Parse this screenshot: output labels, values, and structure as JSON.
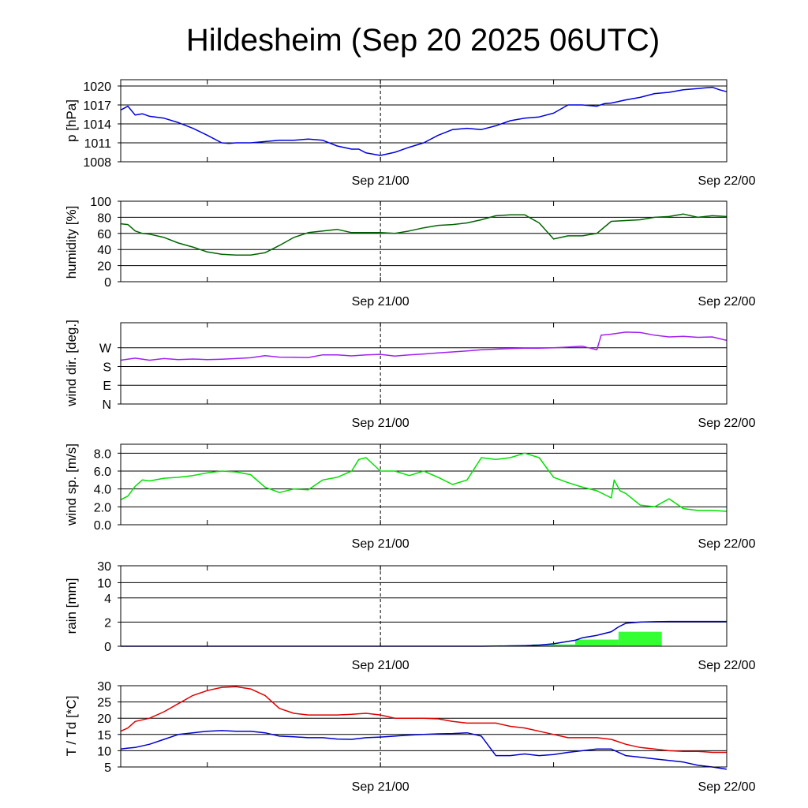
{
  "page": {
    "title": "Hildesheim (Sep 20 2025 06UTC)"
  },
  "colors": {
    "pressure": "#0000e0",
    "humidity": "#006400",
    "wind_dir": "#a020f0",
    "wind_speed": "#00e000",
    "rain_total": "#0000c0",
    "rain_bars": "#33ff33",
    "temperature": "#e00000",
    "dewpoint": "#0000d0"
  },
  "chart_data": [
    {
      "id": "pressure",
      "type": "line",
      "ylabel": "p [hPa]",
      "x_range_hours": [
        0,
        42
      ],
      "date_labels": [
        "Sep 21/00",
        "Sep 22/00"
      ],
      "ylim": [
        1008,
        1021
      ],
      "yticks": [
        "1020",
        "1017",
        "1014",
        "1011",
        "1008"
      ],
      "grid": true,
      "series": [
        {
          "color_key": "pressure",
          "x": [
            0,
            0.5,
            1,
            1.5,
            2,
            3,
            4,
            5,
            6,
            7,
            7.5,
            8,
            9,
            10,
            11,
            12,
            13,
            14,
            15,
            16,
            16.5,
            17,
            18,
            19,
            20,
            21,
            22,
            23,
            24,
            25,
            26,
            27,
            28,
            29,
            30,
            31,
            32,
            33,
            33.5,
            34,
            35,
            36,
            37,
            38,
            39,
            40,
            41,
            41.5,
            42
          ],
          "y": [
            1016.2,
            1016.8,
            1015.4,
            1015.6,
            1015.2,
            1014.9,
            1014.2,
            1013.3,
            1012.2,
            1011.0,
            1010.9,
            1011.0,
            1011.0,
            1011.2,
            1011.4,
            1011.4,
            1011.6,
            1011.4,
            1010.5,
            1010.0,
            1010.0,
            1009.4,
            1009.0,
            1009.5,
            1010.3,
            1011.0,
            1012.2,
            1013.1,
            1013.3,
            1013.1,
            1013.7,
            1014.5,
            1014.9,
            1015.1,
            1015.7,
            1017.0,
            1017.0,
            1016.8,
            1017.2,
            1017.3,
            1017.8,
            1018.2,
            1018.8,
            1019.0,
            1019.4,
            1019.6,
            1019.8,
            1019.4,
            1019.1
          ]
        }
      ]
    },
    {
      "id": "humidity",
      "type": "line",
      "ylabel": "humidity [%]",
      "x_range_hours": [
        0,
        42
      ],
      "date_labels": [
        "Sep 21/00",
        "Sep 22/00"
      ],
      "ylim": [
        0,
        100
      ],
      "yticks": [
        "100",
        "80",
        "60",
        "40",
        "20",
        "0"
      ],
      "grid": true,
      "series": [
        {
          "color_key": "humidity",
          "x": [
            0,
            0.5,
            1,
            1.5,
            2,
            3,
            4,
            5,
            6,
            7,
            8,
            9,
            10,
            11,
            12,
            13,
            14,
            15,
            16,
            17,
            18,
            19,
            20,
            21,
            22,
            23,
            24,
            25,
            26,
            27,
            28,
            29,
            30,
            31,
            32,
            33,
            34,
            35,
            36,
            37,
            38,
            39,
            40,
            41,
            42
          ],
          "y": [
            72,
            71,
            63,
            60,
            59,
            55,
            48,
            43,
            37,
            34,
            33,
            33,
            36,
            45,
            55,
            61,
            63,
            65,
            61,
            61,
            61,
            60,
            63,
            67,
            70,
            71,
            73,
            77,
            82,
            83,
            83,
            73,
            53,
            57,
            57,
            60,
            75,
            76,
            77,
            80,
            81,
            84,
            80,
            82,
            81
          ]
        }
      ]
    },
    {
      "id": "wind_direction",
      "type": "line",
      "ylabel": "wind dir. [deg.]",
      "x_range_hours": [
        0,
        42
      ],
      "date_labels": [
        "Sep 21/00",
        "Sep 22/00"
      ],
      "ylim": [
        0,
        390
      ],
      "yticks": [
        "W",
        "S",
        "E",
        "N"
      ],
      "grid": true,
      "series": [
        {
          "color_key": "wind_dir",
          "x": [
            0,
            1,
            2,
            3,
            4,
            5,
            6,
            7,
            8,
            9,
            10,
            11,
            12,
            13,
            14,
            15,
            16,
            17,
            18,
            19,
            20,
            21,
            22,
            23,
            24,
            25,
            26,
            27,
            28,
            29,
            30,
            31,
            32,
            33,
            33.3,
            34,
            35,
            36,
            37,
            38,
            39,
            40,
            41,
            42
          ],
          "y": [
            210,
            220,
            210,
            218,
            213,
            216,
            213,
            215,
            218,
            222,
            232,
            225,
            224,
            223,
            236,
            236,
            231,
            236,
            238,
            230,
            236,
            240,
            245,
            250,
            255,
            260,
            263,
            266,
            268,
            268,
            270,
            273,
            277,
            260,
            330,
            335,
            345,
            343,
            330,
            322,
            325,
            320,
            322,
            305
          ]
        }
      ]
    },
    {
      "id": "wind_speed",
      "type": "line",
      "ylabel": "wind sp. [m/s]",
      "x_range_hours": [
        0,
        42
      ],
      "date_labels": [
        "Sep 21/00",
        "Sep 22/00"
      ],
      "ylim": [
        0,
        9
      ],
      "yticks": [
        "8.0",
        "6.0",
        "4.0",
        "2.0",
        "0.0"
      ],
      "grid": true,
      "series": [
        {
          "color_key": "wind_speed",
          "x": [
            0,
            0.5,
            1,
            1.5,
            2,
            3,
            4,
            5,
            6,
            7,
            8,
            9,
            10,
            11,
            12,
            13,
            14,
            15,
            16,
            16.5,
            17,
            18,
            19,
            20,
            21,
            22,
            23,
            24,
            25,
            26,
            27,
            28,
            29,
            30,
            31,
            32,
            33,
            34,
            34.2,
            34.6,
            35,
            36,
            37,
            38,
            39,
            40,
            41,
            42
          ],
          "y": [
            2.8,
            3.2,
            4.3,
            5.0,
            4.9,
            5.2,
            5.3,
            5.5,
            5.8,
            6.0,
            5.9,
            5.6,
            4.2,
            3.6,
            4.0,
            3.9,
            5.0,
            5.3,
            6.0,
            7.3,
            7.5,
            6.0,
            6.0,
            5.5,
            6.0,
            5.3,
            4.5,
            5.0,
            7.5,
            7.3,
            7.5,
            8.0,
            7.5,
            5.3,
            4.7,
            4.2,
            3.8,
            3.0,
            5.0,
            3.8,
            3.5,
            2.2,
            2.0,
            2.9,
            1.8,
            1.6,
            1.6,
            1.5
          ]
        }
      ]
    },
    {
      "id": "rain",
      "type": "bar",
      "ylabel": "rain [mm]",
      "x_range_hours": [
        0,
        42
      ],
      "date_labels": [
        "Sep 21/00",
        "Sep 22/00"
      ],
      "yticks": [
        "30",
        "10",
        "4",
        "2",
        "0"
      ],
      "grid": true,
      "bars": {
        "color_key": "rain_bars",
        "x_start": [
          28.5,
          31.5,
          34.5
        ],
        "x_end": [
          31.5,
          34.5,
          37.5
        ],
        "values": [
          0.15,
          0.55,
          1.2
        ]
      },
      "series": [
        {
          "color_key": "rain_total",
          "x": [
            0,
            25,
            26,
            27,
            28,
            29,
            30,
            31,
            31.5,
            32,
            33,
            34,
            34.5,
            35,
            36,
            37,
            38,
            39,
            40,
            41,
            42
          ],
          "y": [
            0,
            0,
            0.01,
            0.03,
            0.05,
            0.1,
            0.2,
            0.4,
            0.5,
            0.7,
            0.9,
            1.2,
            1.6,
            1.9,
            2.0,
            2.03,
            2.05,
            2.05,
            2.05,
            2.05,
            2.05
          ]
        }
      ]
    },
    {
      "id": "temp_dew",
      "type": "line",
      "ylabel": "T / Td [*C]",
      "x_range_hours": [
        0,
        42
      ],
      "date_labels": [
        "Sep 21/00",
        "Sep 22/00"
      ],
      "ylim": [
        5,
        30
      ],
      "yticks": [
        "30",
        "25",
        "20",
        "15",
        "10",
        "5"
      ],
      "grid": true,
      "series": [
        {
          "color_key": "temperature",
          "x": [
            0,
            0.5,
            1,
            1.5,
            2,
            3,
            4,
            5,
            6,
            7,
            8,
            9,
            10,
            10.5,
            11,
            12,
            13,
            14,
            15,
            16,
            17,
            18,
            19,
            20,
            21,
            22,
            23,
            24,
            25,
            26,
            27,
            28,
            29,
            30,
            31,
            32,
            33,
            34,
            35,
            36,
            37,
            38,
            39,
            40,
            41,
            42
          ],
          "y": [
            16,
            17,
            19,
            19.5,
            20,
            22,
            24.5,
            27,
            28.5,
            29.5,
            29.7,
            29,
            27,
            25,
            23,
            21.5,
            21,
            21,
            21,
            21.2,
            21.5,
            21,
            20,
            20,
            20,
            19.8,
            19,
            18.5,
            18.5,
            18.5,
            17.5,
            17,
            16,
            15,
            14,
            14,
            14,
            13.5,
            12,
            11,
            10.5,
            10,
            9.8,
            9.8,
            9.5,
            9.5
          ]
        },
        {
          "color_key": "dewpoint",
          "x": [
            0,
            0.5,
            1,
            2,
            3,
            4,
            5,
            6,
            7,
            8,
            9,
            10,
            11,
            12,
            13,
            14,
            15,
            16,
            17,
            18,
            19,
            20,
            21,
            22,
            23,
            24,
            25,
            26,
            27,
            28,
            29,
            30,
            31,
            32,
            33,
            34,
            35,
            36,
            37,
            38,
            39,
            40,
            41,
            42
          ],
          "y": [
            10.5,
            10.8,
            11,
            12,
            13.5,
            15,
            15.5,
            16,
            16.2,
            16,
            16,
            15.5,
            14.5,
            14.3,
            14,
            14,
            13.6,
            13.5,
            14,
            14.2,
            14.5,
            14.8,
            15,
            15.2,
            15.3,
            15.5,
            14.5,
            8.5,
            8.5,
            9,
            8.5,
            8.8,
            9.5,
            10,
            10.5,
            10.5,
            8.5,
            8,
            7.5,
            7,
            6.5,
            5.5,
            5,
            4.3
          ]
        }
      ]
    }
  ]
}
